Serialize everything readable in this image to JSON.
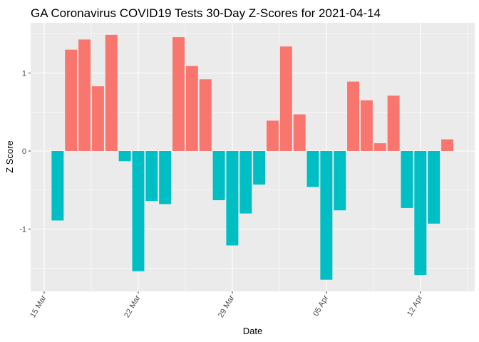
{
  "chart_data": {
    "type": "bar",
    "title": "GA Coronavirus COVID19 Tests 30-Day Z-Scores for 2021-04-14",
    "xlabel": "Date",
    "ylabel": "Z Score",
    "x_tick_labels": [
      "15 Mar",
      "22 Mar",
      "29 Mar",
      "05 Apr",
      "12 Apr"
    ],
    "y_tick_labels": [
      "-1",
      "0",
      "1"
    ],
    "y_ticks": [
      -1,
      0,
      1
    ],
    "ylim": [
      -1.75,
      1.65
    ],
    "grid": true,
    "colors": {
      "positive": "#F8766D",
      "negative": "#00BFC4",
      "panel": "#EBEBEB",
      "grid": "#FFFFFF"
    },
    "x": [
      "2021-03-16",
      "2021-03-17",
      "2021-03-18",
      "2021-03-19",
      "2021-03-20",
      "2021-03-21",
      "2021-03-22",
      "2021-03-23",
      "2021-03-24",
      "2021-03-25",
      "2021-03-26",
      "2021-03-27",
      "2021-03-28",
      "2021-03-29",
      "2021-03-30",
      "2021-03-31",
      "2021-04-01",
      "2021-04-02",
      "2021-04-03",
      "2021-04-04",
      "2021-04-05",
      "2021-04-06",
      "2021-04-07",
      "2021-04-08",
      "2021-04-09",
      "2021-04-10",
      "2021-04-11",
      "2021-04-12",
      "2021-04-13",
      "2021-04-14"
    ],
    "values": [
      -0.89,
      1.3,
      1.43,
      0.83,
      1.49,
      -0.13,
      -1.54,
      -0.64,
      -0.68,
      1.46,
      1.09,
      0.92,
      -0.63,
      -1.21,
      -0.8,
      -0.43,
      0.39,
      1.34,
      0.47,
      -0.46,
      -1.65,
      -0.76,
      0.89,
      0.65,
      0.1,
      0.71,
      -0.73,
      -1.59,
      -0.93,
      0.15
    ]
  }
}
